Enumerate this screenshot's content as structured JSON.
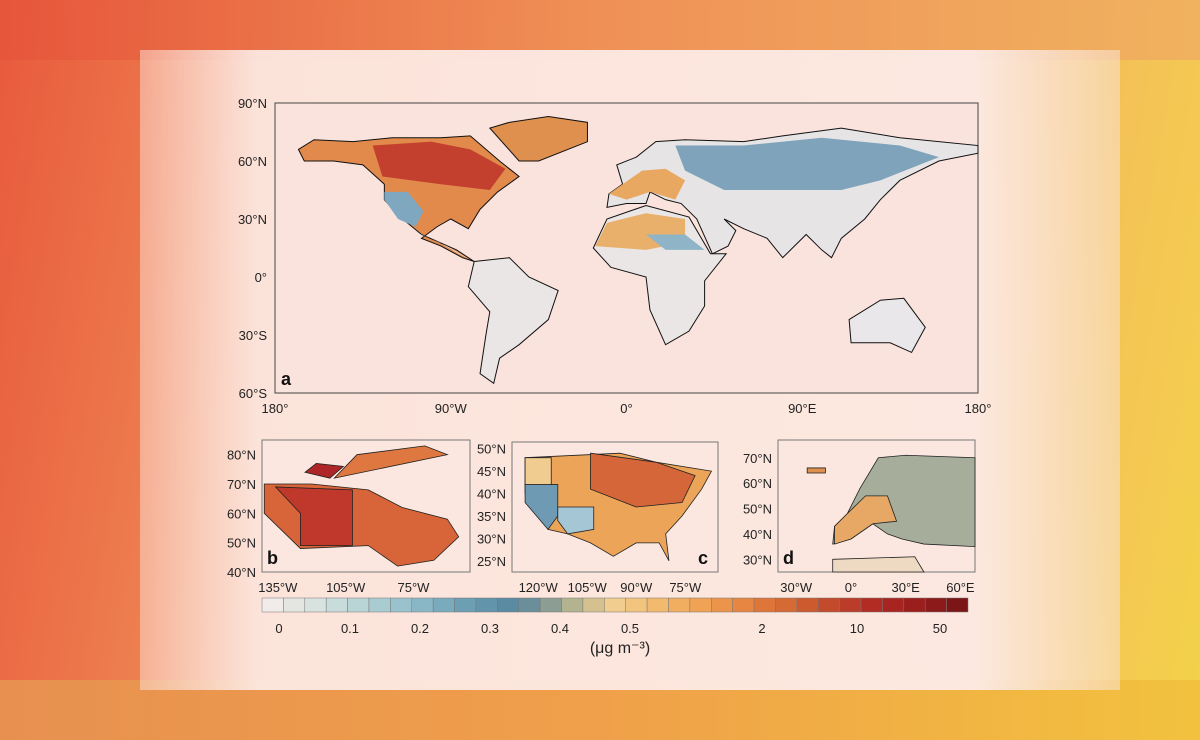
{
  "figure": {
    "panel_a": {
      "letter": "a",
      "lat_labels": [
        "90°N",
        "60°N",
        "30°N",
        "0°",
        "30°S",
        "60°S"
      ],
      "lon_labels": [
        "180°",
        "90°W",
        "0°",
        "90°E",
        "180°"
      ]
    },
    "panel_b": {
      "letter": "b",
      "lat_labels": [
        "80°N",
        "70°N",
        "60°N",
        "50°N",
        "40°N"
      ],
      "lon_labels": [
        "135°W",
        "105°W",
        "75°W"
      ]
    },
    "panel_c": {
      "letter": "c",
      "lat_labels": [
        "50°N",
        "45°N",
        "40°N",
        "35°N",
        "30°N",
        "25°N"
      ],
      "lon_labels": [
        "120°W",
        "105°W",
        "90°W",
        "75°W"
      ]
    },
    "panel_d": {
      "letter": "d",
      "lat_labels": [
        "70°N",
        "60°N",
        "50°N",
        "40°N",
        "30°N"
      ],
      "lon_labels": [
        "30°W",
        "0°",
        "30°E",
        "60°E"
      ]
    },
    "colorbar": {
      "tick_labels": [
        "0",
        "0.1",
        "0.2",
        "0.3",
        "0.4",
        "0.5",
        "2",
        "10",
        "50"
      ],
      "unit": "(μg m⁻³)",
      "colors": [
        "#f1ecea",
        "#e4e6e2",
        "#d8e2de",
        "#c8dcdb",
        "#b9d5d6",
        "#a9ccd2",
        "#9ac2cc",
        "#8ab7c6",
        "#7aabbd",
        "#6c9fb4",
        "#6294ab",
        "#5b8aa3",
        "#6a8f9b",
        "#8c9e93",
        "#b3b48f",
        "#d5c18f",
        "#f1ce8f",
        "#f3c47e",
        "#f2ba6e",
        "#f1ae60",
        "#f0a255",
        "#ec944b",
        "#e68642",
        "#de763a",
        "#d56a34",
        "#cc5a2e",
        "#c34a2a",
        "#bb3c28",
        "#b32c24",
        "#a82420",
        "#9a1e1c",
        "#8c1a1a",
        "#7c1616"
      ]
    }
  }
}
